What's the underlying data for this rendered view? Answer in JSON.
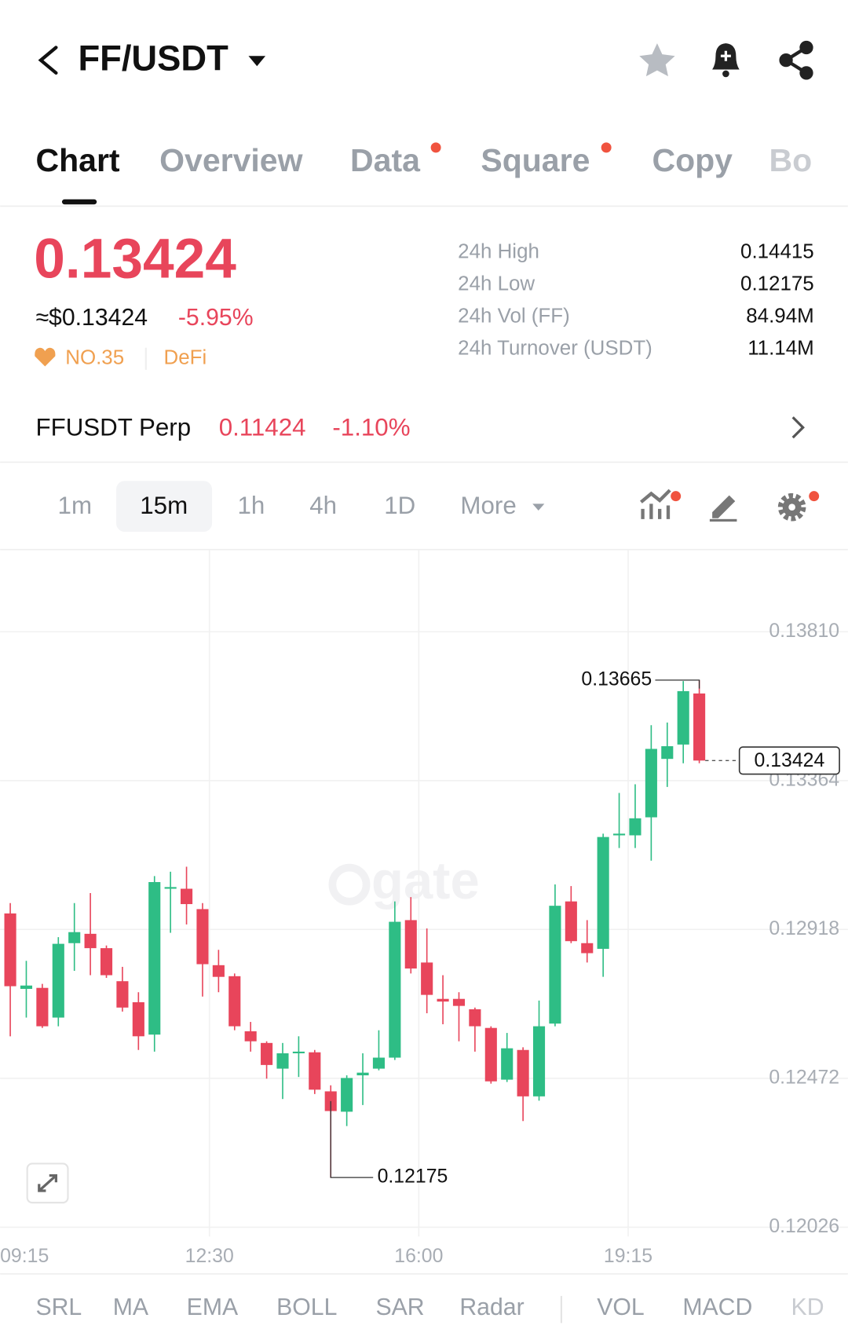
{
  "header": {
    "pair": "FF/USDT"
  },
  "tabs": [
    "Chart",
    "Overview",
    "Data",
    "Square",
    "Copy",
    "Bo"
  ],
  "ticker": {
    "price": "0.13424",
    "usd_price": "≈$0.13424",
    "change": "-5.95%",
    "rank": "NO.35",
    "sector": "DeFi",
    "stats": [
      {
        "label": "24h High",
        "value": "0.14415"
      },
      {
        "label": "24h Low",
        "value": "0.12175"
      },
      {
        "label": "24h Vol (FF)",
        "value": "84.94M"
      },
      {
        "label": "24h Turnover (USDT)",
        "value": "11.14M"
      }
    ]
  },
  "perp": {
    "name": "FFUSDT Perp",
    "price": "0.11424",
    "change": "-1.10%"
  },
  "intervals": [
    "1m",
    "15m",
    "1h",
    "4h",
    "1D",
    "More"
  ],
  "chart_data": {
    "type": "candlestick",
    "watermark": "gate",
    "up_color": "#2ebd85",
    "down_color": "#e8455b",
    "grid": true,
    "ylim": [
      0.11998,
      0.14051
    ],
    "yticks": [
      0.12026,
      0.12472,
      0.12918,
      0.13364,
      {
        "value": 0.1381,
        "label": "0.13810"
      }
    ],
    "xticks": [
      "09:15",
      "12:30",
      "16:00",
      "19:15"
    ],
    "open": [
      0.12966,
      0.1274,
      0.12743,
      0.12654,
      0.12877,
      0.12905,
      0.12862,
      0.12763,
      0.127,
      0.12603,
      0.1304,
      0.1304,
      0.12979,
      0.12811,
      0.12778,
      0.12613,
      0.12578,
      0.12501,
      0.12547,
      0.1255,
      0.12433,
      0.12372,
      0.12481,
      0.12501,
      0.12534,
      0.12946,
      0.12819,
      0.1271,
      0.1271,
      0.12679,
      0.12623,
      0.12468,
      0.12557,
      0.12418,
      0.12636,
      0.13002,
      0.12877,
      0.1286,
      0.132,
      0.132,
      0.13254,
      0.13429,
      0.13472,
      0.13625
    ],
    "high": [
      0.12997,
      0.12824,
      0.12755,
      0.12895,
      0.12997,
      0.13027,
      0.1287,
      0.12806,
      0.1273,
      0.13078,
      0.13091,
      0.13106,
      0.12997,
      0.12857,
      0.12786,
      0.12641,
      0.12583,
      0.12578,
      0.12598,
      0.12557,
      0.12451,
      0.12481,
      0.12547,
      0.12616,
      0.13002,
      0.13015,
      0.12921,
      0.12781,
      0.1273,
      0.12684,
      0.12628,
      0.12608,
      0.12565,
      0.12705,
      0.13053,
      0.13048,
      0.12946,
      0.13205,
      0.13327,
      0.13353,
      0.1353,
      0.13538,
      0.13662,
      0.13665
    ],
    "low": [
      0.12598,
      0.12654,
      0.12623,
      0.12628,
      0.12794,
      0.12781,
      0.12773,
      0.12672,
      0.12557,
      0.12552,
      0.12908,
      0.12933,
      0.12717,
      0.1273,
      0.12616,
      0.12552,
      0.12471,
      0.1241,
      0.12476,
      0.12425,
      0.12175,
      0.12329,
      0.12392,
      0.12496,
      0.12527,
      0.12786,
      0.12667,
      0.12634,
      0.12583,
      0.12552,
      0.12456,
      0.12461,
      0.12344,
      0.12405,
      0.12628,
      0.12877,
      0.12819,
      0.12776,
      0.13162,
      0.13162,
      0.13124,
      0.13345,
      0.13416,
      0.13416
    ],
    "close": [
      0.12748,
      0.1275,
      0.12628,
      0.12875,
      0.1291,
      0.12862,
      0.12781,
      0.12684,
      0.12598,
      0.1306,
      0.13045,
      0.12994,
      0.12814,
      0.12776,
      0.12628,
      0.12583,
      0.12512,
      0.12547,
      0.12552,
      0.12438,
      0.12374,
      0.12473,
      0.12489,
      0.12534,
      0.12941,
      0.12801,
      0.12722,
      0.12702,
      0.12689,
      0.12628,
      0.12463,
      0.12562,
      0.12418,
      0.12628,
      0.12989,
      0.12883,
      0.12847,
      0.13195,
      0.13205,
      0.13251,
      0.13459,
      0.13467,
      0.13632,
      0.13424
    ]
  },
  "indicators": [
    "SRL",
    "MA",
    "EMA",
    "BOLL",
    "SAR",
    "Radar",
    "VOL",
    "MACD",
    "KD"
  ]
}
